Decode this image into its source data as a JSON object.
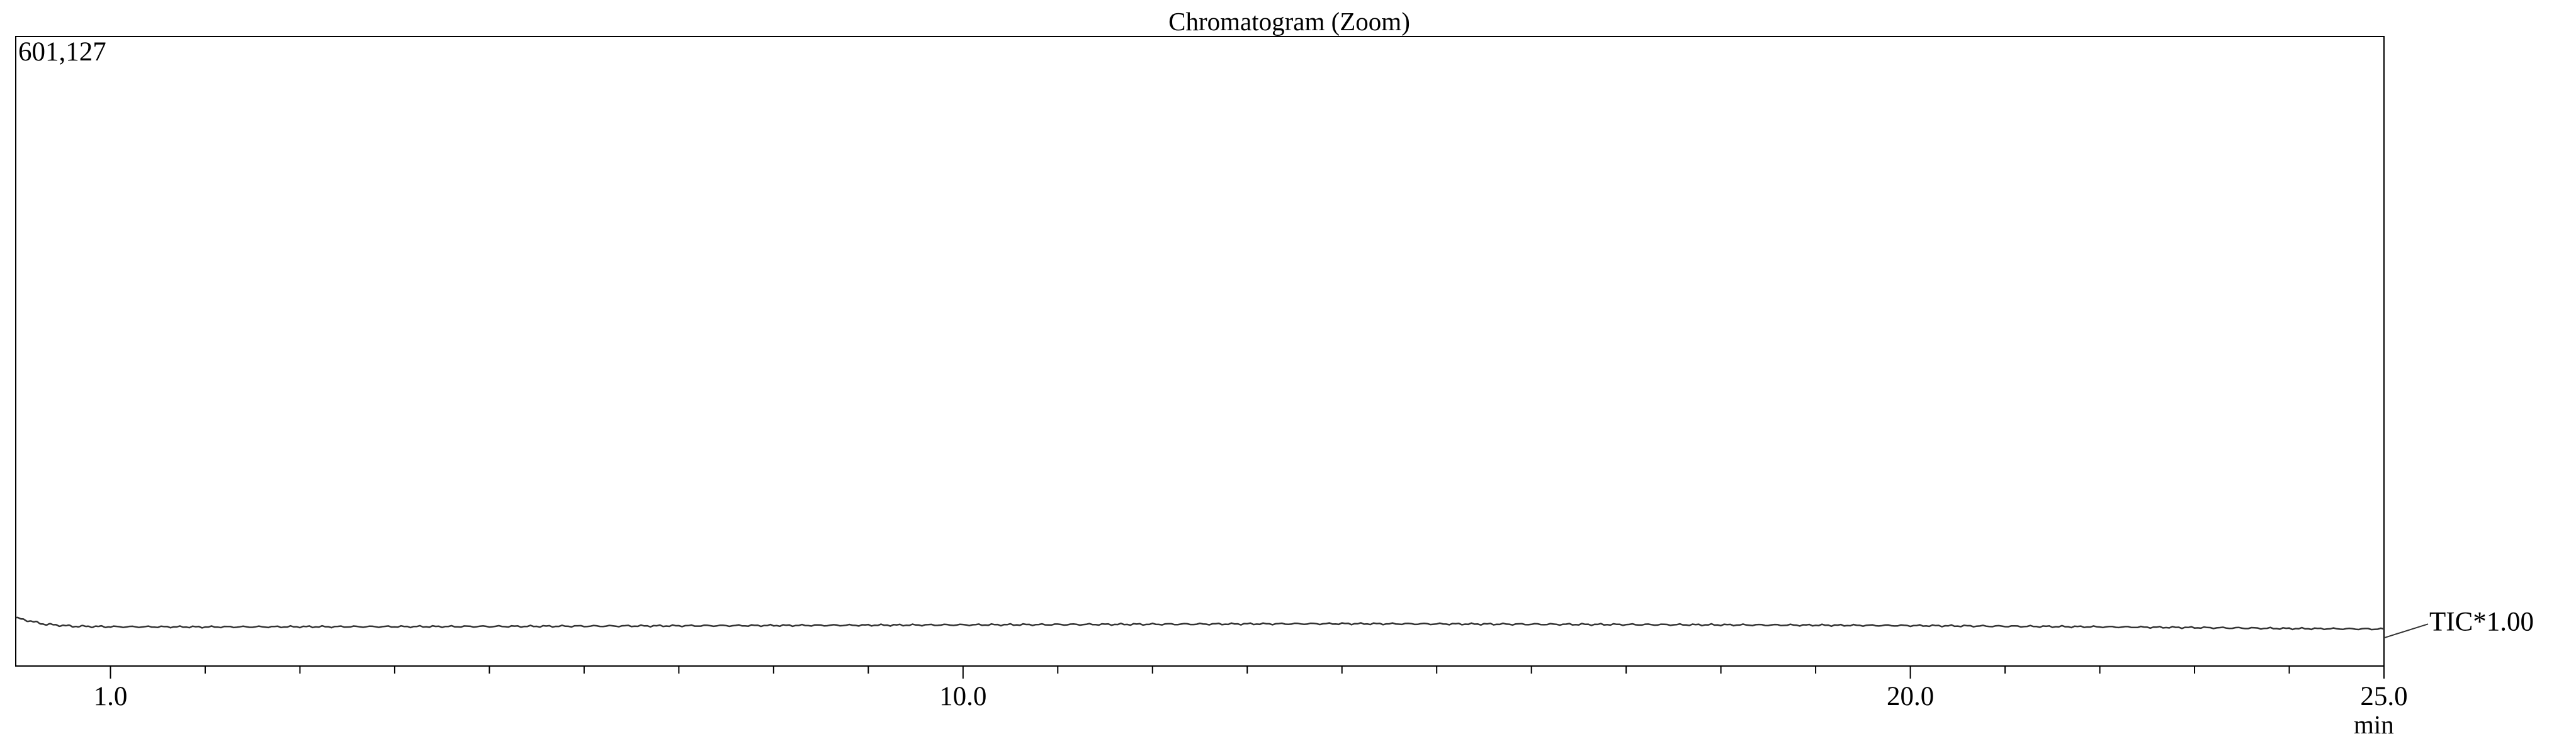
{
  "chart_data": {
    "type": "line",
    "title": "Chromatogram (Zoom)",
    "y_max_label": "601,127",
    "y_max_value": 601127,
    "x_unit": "min",
    "xlim": [
      0.0,
      25.0
    ],
    "ylim": [
      0,
      601127
    ],
    "x_ticks": [
      {
        "value": 1.0,
        "label": "1.0"
      },
      {
        "value": 10.0,
        "label": "10.0"
      },
      {
        "value": 20.0,
        "label": "20.0"
      },
      {
        "value": 25.0,
        "label": "25.0"
      }
    ],
    "minor_tick_step": 1.0,
    "grid": false,
    "series": [
      {
        "name": "TIC*1.00",
        "color": "#333333",
        "x": [
          0.0,
          0.3,
          0.6,
          1.0,
          2.0,
          3.0,
          4.0,
          5.0,
          6.0,
          7.0,
          8.0,
          9.0,
          10.0,
          11.0,
          12.0,
          13.0,
          14.0,
          15.0,
          16.0,
          17.0,
          18.0,
          19.0,
          20.0,
          21.0,
          22.0,
          23.0,
          24.0,
          25.0
        ],
        "y": [
          46000,
          40000,
          38000,
          37500,
          37300,
          37500,
          37600,
          37800,
          38100,
          38400,
          38700,
          39000,
          39300,
          39600,
          39900,
          40200,
          40400,
          40200,
          39900,
          39600,
          39300,
          39000,
          38600,
          38000,
          37400,
          36700,
          35800,
          35300
        ]
      }
    ]
  }
}
